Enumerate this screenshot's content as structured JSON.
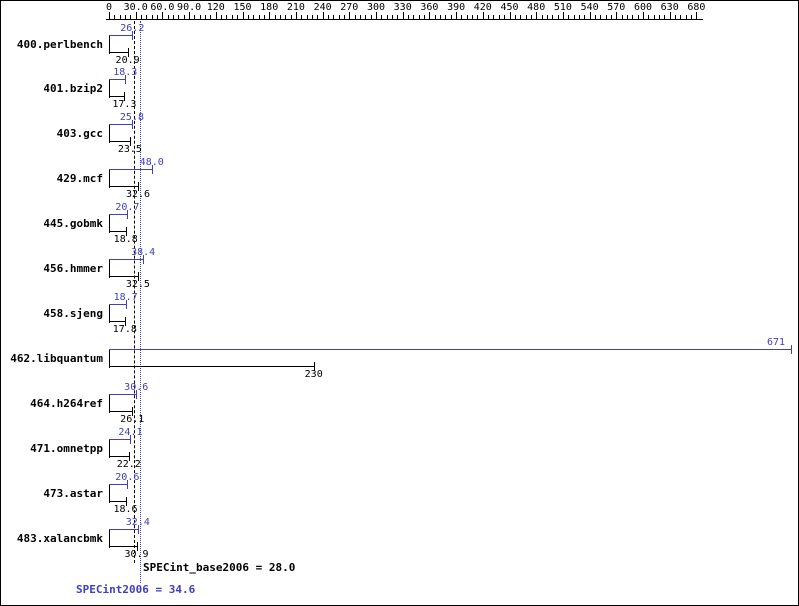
{
  "chart_data": {
    "type": "bar",
    "orientation": "horizontal",
    "legend_position": "none",
    "grid": false,
    "categories": [
      "400.perlbench",
      "401.bzip2",
      "403.gcc",
      "429.mcf",
      "445.gobmk",
      "456.hmmer",
      "458.sjeng",
      "462.libquantum",
      "464.h264ref",
      "471.omnetpp",
      "473.astar",
      "483.xalancbmk"
    ],
    "series": [
      {
        "name": "SPECint2006 (peak)",
        "color": "#3f3fc0",
        "values": [
          26.2,
          18.3,
          25.8,
          48.0,
          20.7,
          38.4,
          18.7,
          671,
          30.6,
          24.1,
          20.6,
          32.4
        ]
      },
      {
        "name": "SPECint_base2006 (base)",
        "color": "#000000",
        "values": [
          20.9,
          17.3,
          23.5,
          32.6,
          18.8,
          32.5,
          17.8,
          230,
          26.1,
          22.2,
          18.6,
          30.9
        ]
      }
    ],
    "value_labels": [
      [
        "26.2",
        "18.3",
        "25.8",
        "48.0",
        "20.7",
        "38.4",
        "18.7",
        "671",
        "30.6",
        "24.1",
        "20.6",
        "32.4"
      ],
      [
        "20.9",
        "17.3",
        "23.5",
        "32.6",
        "18.8",
        "32.5",
        "17.8",
        "230",
        "26.1",
        "22.2",
        "18.6",
        "30.9"
      ]
    ],
    "axis": {
      "min": 0,
      "max": 680,
      "major_step": 30,
      "tick_labels": [
        "0",
        "30.0",
        "60.0",
        "90.0",
        "120",
        "150",
        "180",
        "210",
        "240",
        "270",
        "300",
        "330",
        "360",
        "390",
        "420",
        "450",
        "480",
        "510",
        "540",
        "570",
        "600",
        "630",
        "680"
      ]
    },
    "reference_lines": [
      {
        "value": 28.0,
        "color": "#000000",
        "label": "SPECint_base2006 = 28.0"
      },
      {
        "value": 34.6,
        "color": "#3f3fc0",
        "label": "SPECint2006 = 34.6"
      }
    ]
  },
  "colors": {
    "peak": "#3f3fc0",
    "base": "#000000",
    "background": "#ffffff",
    "border": "#000000"
  }
}
